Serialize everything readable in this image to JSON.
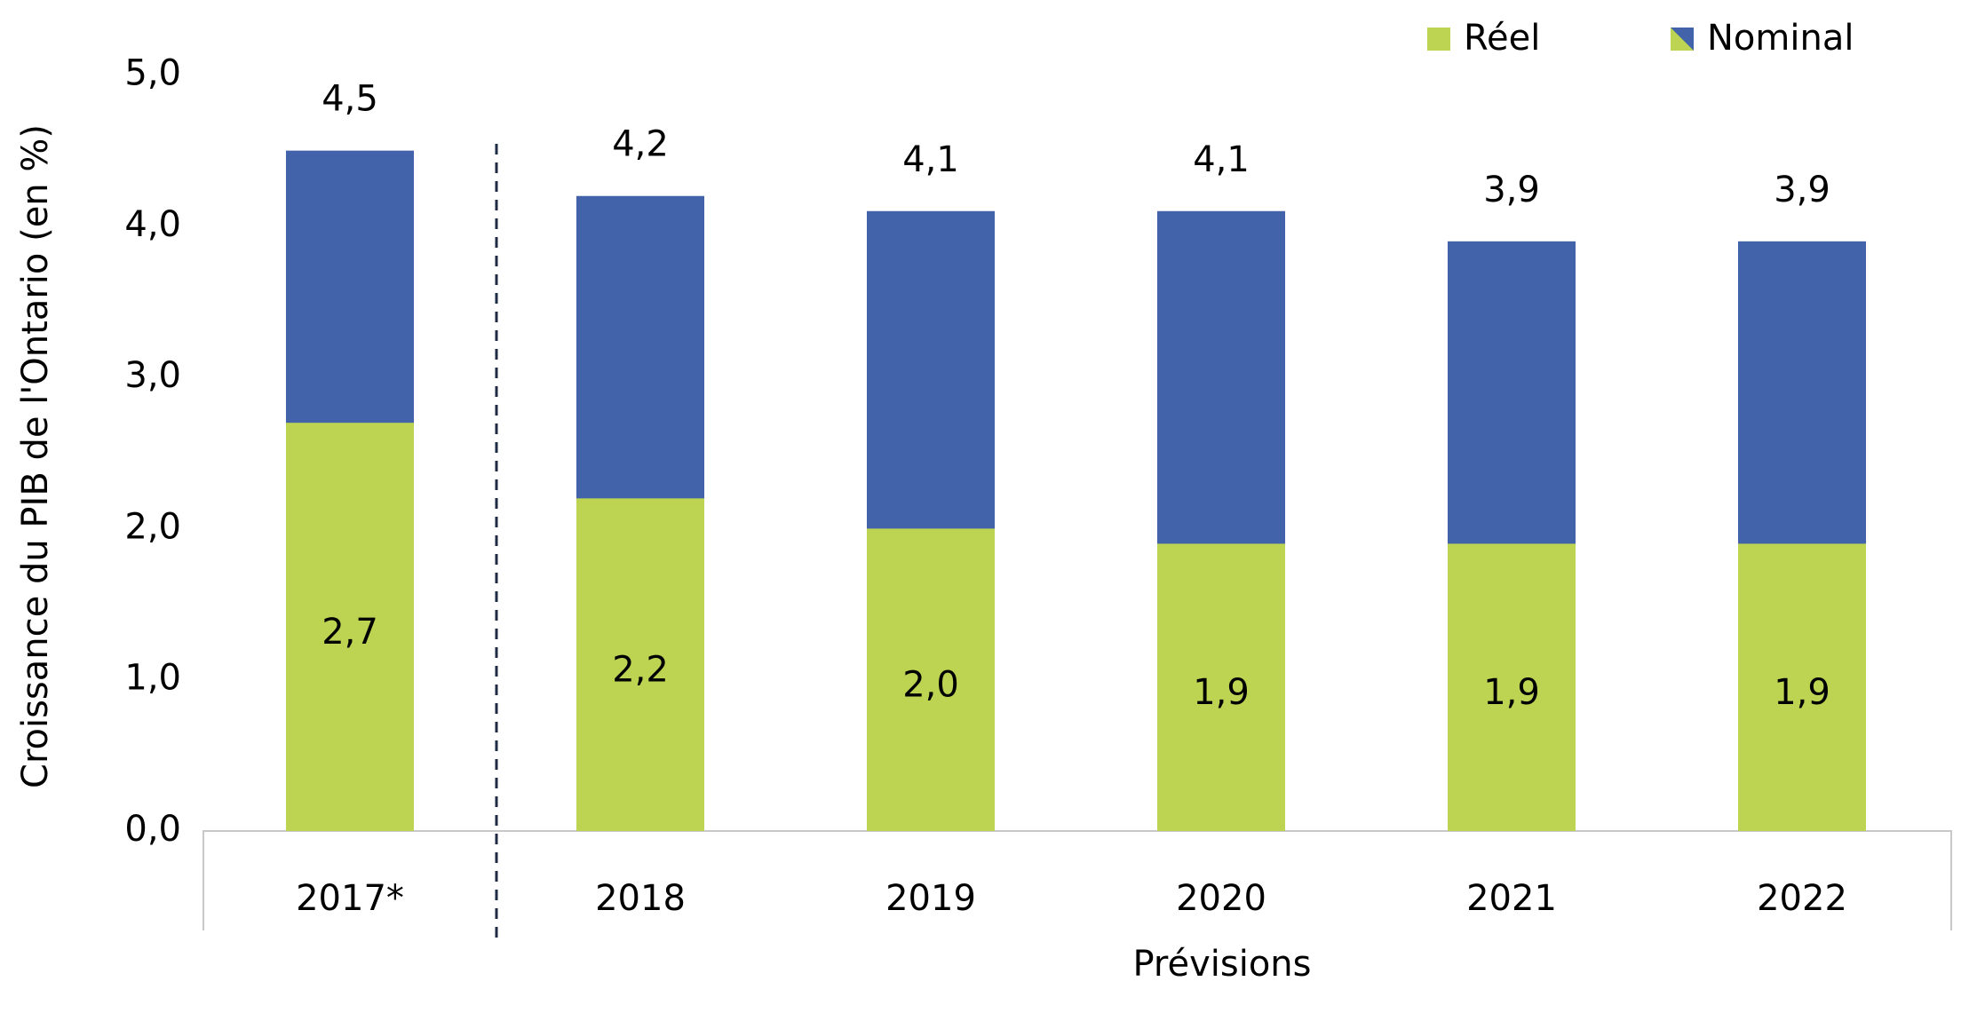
{
  "chart_data": {
    "type": "bar",
    "y_label": "Croissance du PIB de l'Ontario (en %)",
    "x_label": "Prévisions",
    "categories": [
      "2017*",
      "2018",
      "2019",
      "2020",
      "2021",
      "2022"
    ],
    "series": [
      {
        "name": "Réel",
        "color": "#bcd452",
        "values": [
          2.7,
          2.2,
          2.0,
          1.9,
          1.9,
          1.9
        ],
        "value_labels": [
          "2,7",
          "2,2",
          "2,0",
          "1,9",
          "1,9",
          "1,9"
        ]
      },
      {
        "name": "Nominal",
        "color": "#4263aa",
        "values": [
          4.5,
          4.2,
          4.1,
          4.1,
          3.9,
          3.9
        ],
        "value_labels": [
          "4,5",
          "4,2",
          "4,1",
          "4,1",
          "3,9",
          "3,9"
        ]
      }
    ],
    "ylim": [
      0,
      5
    ],
    "yticks": [
      {
        "value": 0,
        "label": "0,0"
      },
      {
        "value": 1,
        "label": "1,0"
      },
      {
        "value": 2,
        "label": "2,0"
      },
      {
        "value": 3,
        "label": "3,0"
      },
      {
        "value": 4,
        "label": "4,0"
      },
      {
        "value": 5,
        "label": "5,0"
      }
    ],
    "grid": false,
    "legend": "top-right"
  }
}
